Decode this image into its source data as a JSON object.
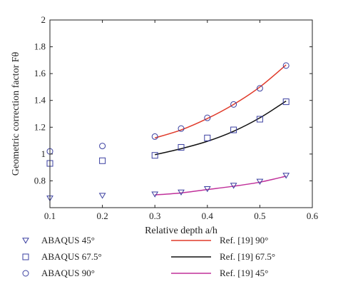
{
  "chart_data": {
    "type": "scatter",
    "title": "",
    "xlabel": "Relative depth a/h",
    "ylabel": "Geometric correction factor Fθ",
    "xlim": [
      0.1,
      0.6
    ],
    "ylim": [
      0.6,
      2.0
    ],
    "x_ticks": [
      "0.1",
      "0.2",
      "0.3",
      "0.4",
      "0.5",
      "0.6"
    ],
    "y_ticks": [
      "0.8",
      "1",
      "1.2",
      "1.4",
      "1.6",
      "1.8",
      "2"
    ],
    "grid": false,
    "legend_position": "bottom",
    "series": [
      {
        "name": "ABAQUS 45°",
        "kind": "marker",
        "marker": "triangle-down",
        "color": "#3a3fa0",
        "x": [
          0.1,
          0.2,
          0.3,
          0.35,
          0.4,
          0.45,
          0.5,
          0.55
        ],
        "y": [
          0.67,
          0.69,
          0.7,
          0.715,
          0.74,
          0.765,
          0.795,
          0.84
        ]
      },
      {
        "name": "ABAQUS 67.5°",
        "kind": "marker",
        "marker": "square",
        "color": "#3a3fa0",
        "x": [
          0.1,
          0.2,
          0.3,
          0.35,
          0.4,
          0.45,
          0.5,
          0.55
        ],
        "y": [
          0.93,
          0.95,
          0.99,
          1.05,
          1.12,
          1.18,
          1.26,
          1.39
        ]
      },
      {
        "name": "ABAQUS 90°",
        "kind": "marker",
        "marker": "circle",
        "color": "#3a3fa0",
        "x": [
          0.1,
          0.2,
          0.3,
          0.35,
          0.4,
          0.45,
          0.5,
          0.55
        ],
        "y": [
          1.02,
          1.06,
          1.13,
          1.19,
          1.27,
          1.37,
          1.49,
          1.66
        ]
      },
      {
        "name": "Ref. [19] 90°",
        "kind": "line",
        "color": "#e03a2a",
        "x": [
          0.3,
          0.35,
          0.4,
          0.45,
          0.5,
          0.55
        ],
        "y": [
          1.12,
          1.18,
          1.265,
          1.37,
          1.5,
          1.665
        ]
      },
      {
        "name": "Ref. [19] 67.5°",
        "kind": "line",
        "color": "#111111",
        "x": [
          0.3,
          0.35,
          0.4,
          0.45,
          0.5,
          0.55
        ],
        "y": [
          0.995,
          1.04,
          1.095,
          1.17,
          1.27,
          1.395
        ]
      },
      {
        "name": "Ref. [19] 45°",
        "kind": "line",
        "color": "#c0309a",
        "x": [
          0.3,
          0.35,
          0.4,
          0.45,
          0.5,
          0.55
        ],
        "y": [
          0.695,
          0.71,
          0.735,
          0.76,
          0.79,
          0.835
        ]
      }
    ]
  }
}
